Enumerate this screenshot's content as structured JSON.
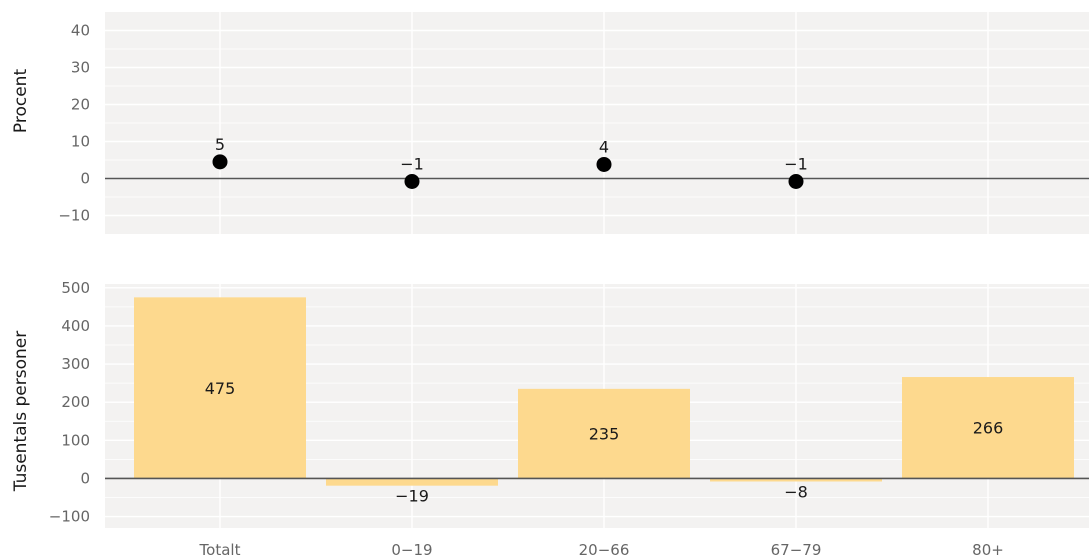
{
  "chart_data": [
    {
      "type": "scatter",
      "ylabel": "Procent",
      "ylim": [
        -15,
        45
      ],
      "yticks": [
        -10,
        0,
        10,
        20,
        30,
        40
      ],
      "ytick_labels": [
        "−10",
        "0",
        "10",
        "20",
        "30",
        "40"
      ],
      "categories": [
        "Totalt",
        "0−19",
        "20−66",
        "67−79",
        "80+"
      ],
      "values": [
        4.5,
        -0.8,
        3.8,
        -0.8,
        null
      ],
      "value_labels": [
        "5",
        "−1",
        "4",
        "−1",
        ""
      ],
      "grid": true,
      "colors": {
        "point": "#000000",
        "panel": "#f3f2f1",
        "grid": "#ffffff",
        "zero_line": "#555555"
      }
    },
    {
      "type": "bar",
      "ylabel": "Tusentals personer",
      "ylim": [
        -130,
        510
      ],
      "yticks": [
        -100,
        0,
        100,
        200,
        300,
        400,
        500
      ],
      "ytick_labels": [
        "−100",
        "0",
        "100",
        "200",
        "300",
        "400",
        "500"
      ],
      "categories": [
        "Totalt",
        "0−19",
        "20−66",
        "67−79",
        "80+"
      ],
      "values": [
        475,
        -19,
        235,
        -8,
        266
      ],
      "value_labels": [
        "475",
        "−19",
        "235",
        "−8",
        "266"
      ],
      "grid": true,
      "colors": {
        "bar": "#fdd98e",
        "panel": "#f3f2f1",
        "grid": "#ffffff",
        "zero_line": "#555555"
      }
    }
  ]
}
